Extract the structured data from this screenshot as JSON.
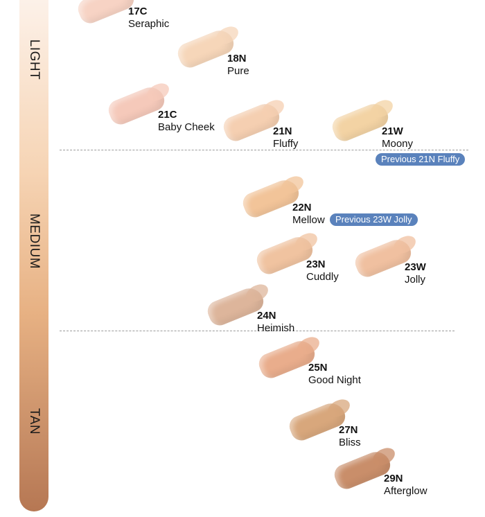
{
  "tiers": [
    "LIGHT",
    "MEDIUM",
    "TAN"
  ],
  "shades": [
    {
      "code": "17C",
      "name": "Seraphic",
      "color": "#f7d3c4"
    },
    {
      "code": "18N",
      "name": "Pure",
      "color": "#f6d6b9"
    },
    {
      "code": "21C",
      "name": "Baby Cheek",
      "color": "#f5c9ba"
    },
    {
      "code": "21N",
      "name": "Fluffy",
      "color": "#f5cfb1"
    },
    {
      "code": "21W",
      "name": "Moony",
      "color": "#f3d3a4"
    },
    {
      "code": "22N",
      "name": "Mellow",
      "color": "#f2c499"
    },
    {
      "code": "23N",
      "name": "Cuddly",
      "color": "#f0c3a0"
    },
    {
      "code": "23W",
      "name": "Jolly",
      "color": "#f0c0a0"
    },
    {
      "code": "24N",
      "name": "Heimish",
      "color": "#ddb59b"
    },
    {
      "code": "25N",
      "name": "Good Night",
      "color": "#e9ad8c"
    },
    {
      "code": "27N",
      "name": "Bliss",
      "color": "#d8a77c"
    },
    {
      "code": "29N",
      "name": "Afterglow",
      "color": "#c98e6a"
    }
  ],
  "badges": [
    "Previous 21N Fluffy",
    "Previous 23W Jolly"
  ]
}
